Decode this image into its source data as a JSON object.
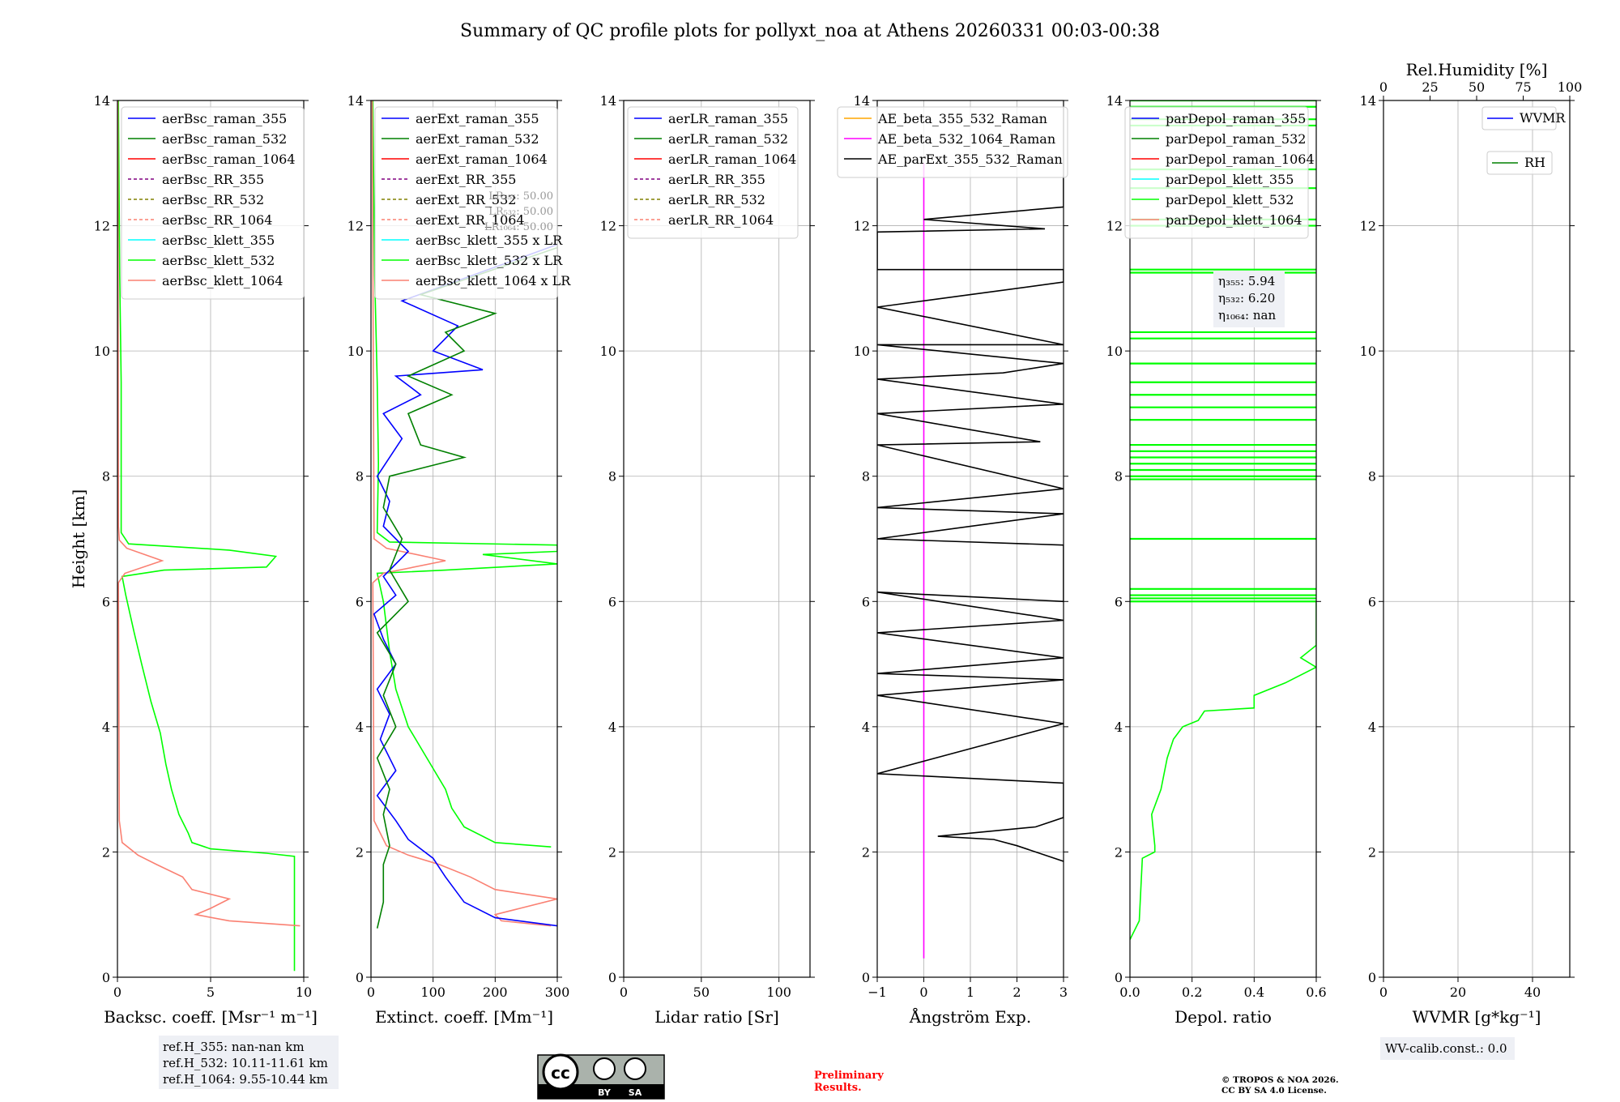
{
  "title": "Summary of QC profile plots for pollyxt_noa at Athens 20260331 00:03-00:38",
  "y_axis": {
    "label": "Height [km]",
    "ylim": [
      0,
      14
    ],
    "ticks": [
      "0",
      "2",
      "4",
      "6",
      "8",
      "10",
      "12",
      "14"
    ]
  },
  "colors": {
    "raman_355": "#0000ff",
    "raman_532": "#008000",
    "raman_1064": "#ff0000",
    "rr_355": "#800080",
    "rr_532": "#808000",
    "rr_1064": "#fa8072",
    "klett_355": "#00ffff",
    "klett_532": "#00ff00",
    "klett_1064": "#fa8072",
    "ae1": "#ffa500",
    "ae2": "#ff00ff",
    "ae3": "#000000"
  },
  "chart_data": [
    {
      "type": "line",
      "xlabel": "Backsc. coeff. [Msr⁻¹ m⁻¹]",
      "xlim": [
        0,
        10
      ],
      "xticks": [
        "0",
        "5",
        "10"
      ],
      "legend": [
        "aerBsc_raman_355",
        "aerBsc_raman_532",
        "aerBsc_raman_1064",
        "aerBsc_RR_355",
        "aerBsc_RR_532",
        "aerBsc_RR_1064",
        "aerBsc_klett_355",
        "aerBsc_klett_532",
        "aerBsc_klett_1064"
      ],
      "series": [
        {
          "name": "aerBsc_klett_532",
          "color": "#00ff00",
          "points": [
            [
              9.5,
              0.1
            ],
            [
              9.5,
              1.93
            ],
            [
              8,
              1.98
            ],
            [
              5,
              2.05
            ],
            [
              4,
              2.15
            ],
            [
              3.8,
              2.3
            ],
            [
              3.3,
              2.6
            ],
            [
              2.9,
              3
            ],
            [
              2.6,
              3.4
            ],
            [
              2.3,
              3.9
            ],
            [
              1.8,
              4.4
            ],
            [
              1.3,
              5
            ],
            [
              0.9,
              5.5
            ],
            [
              0.45,
              6.1
            ],
            [
              0.25,
              6.4
            ],
            [
              2.5,
              6.5
            ],
            [
              8,
              6.55
            ],
            [
              8.5,
              6.72
            ],
            [
              6,
              6.82
            ],
            [
              0.6,
              6.92
            ],
            [
              0.2,
              7.1
            ],
            [
              0.2,
              8.2
            ],
            [
              0.2,
              9.5
            ],
            [
              0.12,
              11.2
            ],
            [
              0.05,
              14
            ]
          ]
        },
        {
          "name": "aerBsc_klett_1064",
          "color": "#fa8072",
          "points": [
            [
              9.8,
              0.82
            ],
            [
              6,
              0.9
            ],
            [
              4.2,
              1
            ],
            [
              5,
              1.1
            ],
            [
              6,
              1.25
            ],
            [
              4,
              1.4
            ],
            [
              3.5,
              1.6
            ],
            [
              2.1,
              1.8
            ],
            [
              1.1,
              1.95
            ],
            [
              0.25,
              2.15
            ],
            [
              0.1,
              2.5
            ],
            [
              0.05,
              6.3
            ],
            [
              0.4,
              6.45
            ],
            [
              2.4,
              6.65
            ],
            [
              0.5,
              6.85
            ],
            [
              0.1,
              6.98
            ],
            [
              0.05,
              7.2
            ],
            [
              0.02,
              14
            ]
          ]
        }
      ]
    },
    {
      "type": "line",
      "xlabel": "Extinct. coeff. [Mm⁻¹]",
      "xlim": [
        0,
        300
      ],
      "xticks": [
        "0",
        "100",
        "200",
        "300"
      ],
      "legend": [
        "aerExt_raman_355",
        "aerExt_raman_532",
        "aerExt_raman_1064",
        "aerExt_RR_355",
        "aerExt_RR_532",
        "aerExt_RR_1064",
        "aerBsc_klett_355 x LR",
        "aerBsc_klett_532 x LR",
        "aerBsc_klett_1064 x LR"
      ],
      "lr_labels": [
        "LR₃₅₅: 50.00",
        "LR₅₃₂: 50.00",
        "LR₁₀₆₄: 50.00"
      ],
      "series": [
        {
          "name": "aerBsc_klett_532 x LR",
          "color": "#00ff00",
          "points": [
            [
              290,
              2.08
            ],
            [
              200,
              2.15
            ],
            [
              150,
              2.4
            ],
            [
              130,
              2.7
            ],
            [
              120,
              3
            ],
            [
              90,
              3.5
            ],
            [
              60,
              4
            ],
            [
              40,
              4.6
            ],
            [
              30,
              5.2
            ],
            [
              20,
              6
            ],
            [
              10,
              6.45
            ],
            [
              120,
              6.5
            ],
            [
              300,
              6.6
            ],
            [
              180,
              6.75
            ],
            [
              300,
              6.8
            ],
            [
              300,
              6.9
            ],
            [
              30,
              6.95
            ],
            [
              10,
              7.1
            ],
            [
              12,
              8.2
            ],
            [
              10,
              9.5
            ],
            [
              6,
              11.2
            ],
            [
              3,
              14
            ]
          ]
        },
        {
          "name": "aerBsc_klett_1064 x LR",
          "color": "#fa8072",
          "points": [
            [
              290,
              0.82
            ],
            [
              210,
              0.9
            ],
            [
              200,
              1
            ],
            [
              240,
              1.1
            ],
            [
              300,
              1.25
            ],
            [
              200,
              1.4
            ],
            [
              160,
              1.6
            ],
            [
              110,
              1.8
            ],
            [
              60,
              1.95
            ],
            [
              25,
              2.1
            ],
            [
              5,
              2.5
            ],
            [
              3,
              6.3
            ],
            [
              20,
              6.45
            ],
            [
              120,
              6.65
            ],
            [
              25,
              6.85
            ],
            [
              5,
              7
            ],
            [
              2,
              14
            ]
          ]
        },
        {
          "name": "aerExt_raman_355",
          "color": "#0000ff",
          "points": [
            [
              300,
              0.82
            ],
            [
              200,
              0.95
            ],
            [
              150,
              1.2
            ],
            [
              120,
              1.6
            ],
            [
              100,
              1.9
            ],
            [
              60,
              2.2
            ],
            [
              40,
              2.5
            ],
            [
              10,
              2.9
            ],
            [
              40,
              3.3
            ],
            [
              15,
              3.8
            ],
            [
              30,
              4.2
            ],
            [
              10,
              4.6
            ],
            [
              40,
              5
            ],
            [
              20,
              5.4
            ],
            [
              5,
              5.8
            ],
            [
              40,
              6.1
            ],
            [
              20,
              6.4
            ],
            [
              60,
              6.8
            ],
            [
              20,
              7.2
            ],
            [
              30,
              7.6
            ],
            [
              10,
              8
            ],
            [
              50,
              8.6
            ],
            [
              20,
              9
            ],
            [
              80,
              9.3
            ],
            [
              40,
              9.6
            ],
            [
              180,
              9.7
            ],
            [
              100,
              10
            ],
            [
              140,
              10.4
            ],
            [
              50,
              10.8
            ],
            [
              300,
              11.7
            ]
          ]
        },
        {
          "name": "aerExt_raman_532",
          "color": "#008000",
          "points": [
            [
              10,
              0.78
            ],
            [
              20,
              1.2
            ],
            [
              20,
              1.8
            ],
            [
              30,
              2.1
            ],
            [
              20,
              2.6
            ],
            [
              30,
              3
            ],
            [
              10,
              3.5
            ],
            [
              40,
              4
            ],
            [
              20,
              4.5
            ],
            [
              40,
              5
            ],
            [
              10,
              5.5
            ],
            [
              60,
              6
            ],
            [
              30,
              6.5
            ],
            [
              50,
              7
            ],
            [
              20,
              7.5
            ],
            [
              30,
              8
            ],
            [
              150,
              8.3
            ],
            [
              80,
              8.5
            ],
            [
              60,
              9
            ],
            [
              130,
              9.3
            ],
            [
              60,
              9.6
            ],
            [
              150,
              10
            ],
            [
              120,
              10.3
            ],
            [
              200,
              10.6
            ],
            [
              80,
              10.9
            ],
            [
              300,
              11.65
            ]
          ]
        }
      ]
    },
    {
      "type": "line",
      "xlabel": "Lidar ratio [Sr]",
      "xlim": [
        0,
        120
      ],
      "xticks": [
        "0",
        "50",
        "100"
      ],
      "legend": [
        "aerLR_raman_355",
        "aerLR_raman_532",
        "aerLR_raman_1064",
        "aerLR_RR_355",
        "aerLR_RR_532",
        "aerLR_RR_1064"
      ],
      "series": []
    },
    {
      "type": "line",
      "xlabel": "Ångström Exp.",
      "xlim": [
        -1,
        3
      ],
      "xticks": [
        "−1",
        "0",
        "1",
        "2",
        "3"
      ],
      "legend": [
        "AE_beta_355_532_Raman",
        "AE_beta_532_1064_Raman",
        "AE_parExt_355_532_Raman"
      ],
      "series": [
        {
          "name": "AE_beta_532_1064_Raman",
          "color": "#ff00ff",
          "points": [
            [
              0,
              0.3
            ],
            [
              0,
              13
            ]
          ]
        },
        {
          "name": "AE_parExt_355_532_Raman",
          "color": "#000000",
          "points": [
            [
              3,
              1.85
            ],
            [
              2,
              2.1
            ],
            [
              1.5,
              2.2
            ],
            [
              0.3,
              2.25
            ],
            [
              2.4,
              2.4
            ],
            [
              3,
              2.55
            ],
            [
              3,
              3.1
            ],
            [
              -1,
              3.25
            ],
            [
              3,
              4.05
            ],
            [
              -1,
              4.5
            ],
            [
              3,
              4.75
            ],
            [
              -1,
              4.85
            ],
            [
              3,
              5.1
            ],
            [
              -1,
              5.5
            ],
            [
              3,
              5.7
            ],
            [
              -1,
              6.15
            ],
            [
              3,
              6.0
            ],
            [
              3,
              6.9
            ],
            [
              -1,
              7
            ],
            [
              3,
              7.4
            ],
            [
              -1,
              7.5
            ],
            [
              3,
              7.8
            ],
            [
              -1,
              8.5
            ],
            [
              2.5,
              8.55
            ],
            [
              -1,
              9
            ],
            [
              3,
              9.15
            ],
            [
              -1,
              9.55
            ],
            [
              1.7,
              9.65
            ],
            [
              3,
              9.8
            ],
            [
              -1,
              10.1
            ],
            [
              3,
              10.1
            ],
            [
              -1,
              10.7
            ],
            [
              1,
              10.9
            ],
            [
              3,
              11.1
            ],
            [
              3,
              11.3
            ],
            [
              -1,
              11.3
            ],
            [
              -1,
              11.9
            ],
            [
              2.6,
              11.95
            ],
            [
              0,
              12.1
            ],
            [
              3,
              12.3
            ],
            [
              3,
              12.8
            ]
          ]
        }
      ]
    },
    {
      "type": "line",
      "xlabel": "Depol. ratio",
      "xlim": [
        0,
        0.6
      ],
      "xticks": [
        "0.0",
        "0.2",
        "0.4",
        "0.6"
      ],
      "legend": [
        "parDepol_raman_355",
        "parDepol_raman_532",
        "parDepol_raman_1064",
        "parDepol_klett_355",
        "parDepol_klett_532",
        "parDepol_klett_1064"
      ],
      "eta_labels": [
        "η₃₅₅: 5.94",
        "η₅₃₂: 6.20",
        "η₁₀₆₄: nan"
      ],
      "series": [
        {
          "name": "parDepol_klett_532",
          "color": "#00ff00",
          "points": [
            [
              0.0,
              0.6
            ],
            [
              0.03,
              0.9
            ],
            [
              0.04,
              1.9
            ],
            [
              0.08,
              2.0
            ],
            [
              0.08,
              2.1
            ],
            [
              0.07,
              2.6
            ],
            [
              0.1,
              3.0
            ],
            [
              0.12,
              3.5
            ],
            [
              0.14,
              3.8
            ],
            [
              0.17,
              4.0
            ],
            [
              0.22,
              4.1
            ],
            [
              0.24,
              4.25
            ],
            [
              0.4,
              4.3
            ],
            [
              0.4,
              4.5
            ],
            [
              0.5,
              4.7
            ],
            [
              0.6,
              4.95
            ],
            [
              0.55,
              5.1
            ],
            [
              0.6,
              5.3
            ],
            [
              0.6,
              5.4
            ],
            [
              0.6,
              6
            ]
          ]
        }
      ],
      "horizontal_lines_km": [
        6.0,
        6.05,
        6.1,
        6.2,
        7.0,
        7.95,
        8.0,
        8.1,
        8.2,
        8.3,
        8.4,
        8.5,
        8.9,
        9.1,
        9.3,
        9.5,
        9.8,
        10.2,
        10.3,
        11.25,
        11.3,
        12.0,
        12.1,
        12.6,
        12.9,
        13.6,
        13.7,
        13.9,
        14.0
      ]
    },
    {
      "type": "line",
      "xlabel": "WVMR [g*kg⁻¹]",
      "xlim": [
        0,
        50
      ],
      "xticks": [
        "0",
        "20",
        "40"
      ],
      "top_axis": {
        "label": "Rel.Humidity [%]",
        "ticks": [
          "0",
          "25",
          "50",
          "75",
          "100"
        ]
      },
      "legend": [
        "WVMR",
        "RH"
      ],
      "series": []
    }
  ],
  "info_boxes": {
    "ref_heights": [
      "ref.H_355: nan-nan km",
      "ref.H_532: 10.11-11.61 km",
      "ref.H_1064: 9.55-10.44 km"
    ],
    "wv_calib": "WV-calib.const.: 0.0",
    "preliminary": [
      "Preliminary",
      "Results."
    ],
    "copyright": [
      "© TROPOS & NOA 2026.",
      "CC BY SA 4.0 License."
    ],
    "license_badge": [
      "cc",
      "BY",
      "SA"
    ]
  }
}
